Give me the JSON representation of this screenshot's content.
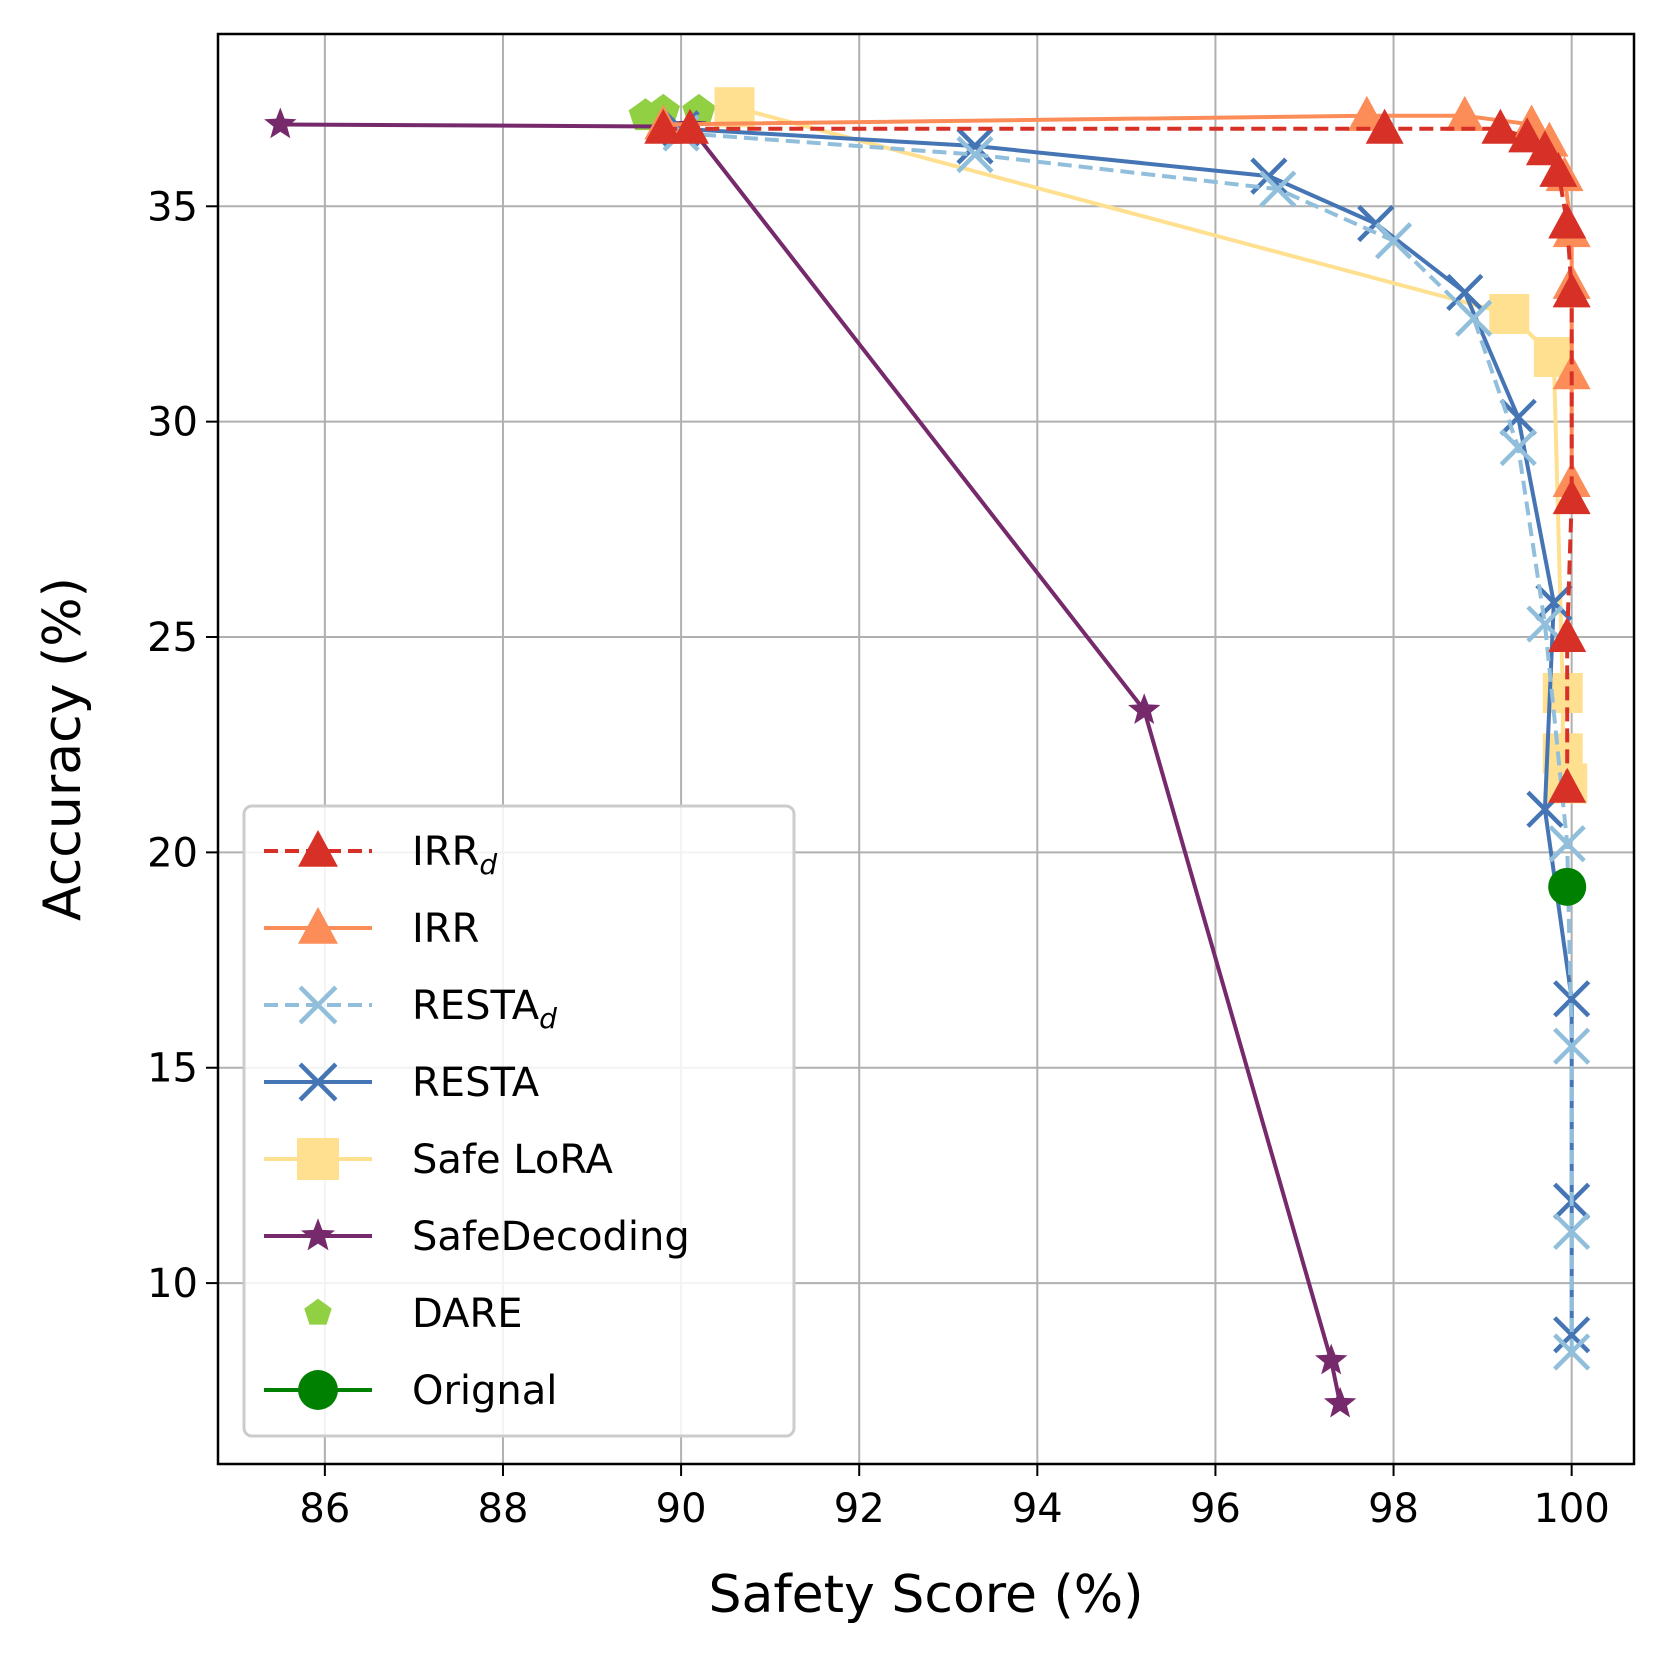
{
  "chart_data": {
    "type": "line",
    "title": "",
    "xlabel": "Safety Score (%)",
    "ylabel": "Accuracy (%)",
    "xlim": [
      84.8,
      100.7
    ],
    "ylim": [
      5.8,
      39.0
    ],
    "xticks": [
      86,
      88,
      90,
      92,
      94,
      96,
      98,
      100
    ],
    "xtick_labels": [
      "86",
      "88",
      "90",
      "92",
      "94",
      "96",
      "98",
      "100"
    ],
    "yticks": [
      10,
      15,
      20,
      25,
      30,
      35
    ],
    "ytick_labels": [
      "10",
      "15",
      "20",
      "25",
      "30",
      "35"
    ],
    "grid": true,
    "legend_position": "lower-left",
    "series": [
      {
        "name": "IRR",
        "name_sub": "d",
        "color": "#d73027",
        "line": "dashed",
        "marker": "triangle",
        "points": [
          [
            89.8,
            36.8
          ],
          [
            90.1,
            36.8
          ],
          [
            97.9,
            36.8
          ],
          [
            99.2,
            36.8
          ],
          [
            99.5,
            36.6
          ],
          [
            99.7,
            36.3
          ],
          [
            99.85,
            35.8
          ],
          [
            99.95,
            34.6
          ],
          [
            100.0,
            33.0
          ],
          [
            100.0,
            28.2
          ],
          [
            99.95,
            25.0
          ],
          [
            99.95,
            21.5
          ]
        ]
      },
      {
        "name": "IRR",
        "name_sub": "",
        "color": "#fc8d59",
        "line": "solid",
        "marker": "triangle",
        "points": [
          [
            89.8,
            36.9
          ],
          [
            97.7,
            37.1
          ],
          [
            98.8,
            37.1
          ],
          [
            99.55,
            36.9
          ],
          [
            99.75,
            36.5
          ],
          [
            99.92,
            35.7
          ],
          [
            100.0,
            34.4
          ],
          [
            100.0,
            33.2
          ],
          [
            100.0,
            31.1
          ],
          [
            100.0,
            28.6
          ]
        ]
      },
      {
        "name": "RESTA",
        "name_sub": "d",
        "color": "#91bfdb",
        "line": "dashed",
        "marker": "x",
        "points": [
          [
            90.0,
            36.7
          ],
          [
            93.3,
            36.2
          ],
          [
            96.7,
            35.4
          ],
          [
            98.0,
            34.2
          ],
          [
            98.9,
            32.4
          ],
          [
            99.4,
            29.4
          ],
          [
            99.7,
            25.3
          ],
          [
            99.95,
            20.2
          ],
          [
            100.0,
            15.5
          ],
          [
            100.0,
            11.2
          ],
          [
            100.0,
            8.4
          ]
        ]
      },
      {
        "name": "RESTA",
        "name_sub": "",
        "color": "#4575b4",
        "line": "solid",
        "marker": "x",
        "points": [
          [
            90.0,
            36.8
          ],
          [
            93.3,
            36.4
          ],
          [
            96.6,
            35.7
          ],
          [
            97.8,
            34.6
          ],
          [
            98.8,
            33.0
          ],
          [
            99.4,
            30.1
          ],
          [
            99.8,
            25.8
          ],
          [
            99.7,
            21.0
          ],
          [
            100.0,
            16.6
          ],
          [
            100.0,
            11.9
          ],
          [
            100.0,
            8.8
          ]
        ]
      },
      {
        "name": "Safe LoRA",
        "name_sub": "",
        "color": "#fee090",
        "line": "solid",
        "marker": "square",
        "points": [
          [
            90.6,
            37.3
          ],
          [
            99.3,
            32.5
          ],
          [
            99.8,
            31.5
          ],
          [
            99.9,
            23.7
          ],
          [
            99.9,
            22.3
          ],
          [
            99.95,
            21.6
          ]
        ]
      },
      {
        "name": "SafeDecoding",
        "name_sub": "",
        "color": "#762a6b",
        "line": "solid",
        "marker": "star",
        "points": [
          [
            85.5,
            36.9
          ],
          [
            90.1,
            36.85
          ],
          [
            95.2,
            23.3
          ],
          [
            97.3,
            8.2
          ],
          [
            97.4,
            7.2
          ]
        ]
      },
      {
        "name": "DARE",
        "name_sub": "",
        "color": "#91d042",
        "line": "none",
        "marker": "pentagon",
        "points": [
          [
            89.6,
            37.1
          ],
          [
            89.8,
            37.2
          ],
          [
            90.2,
            37.2
          ]
        ]
      },
      {
        "name": "Orignal",
        "name_sub": "",
        "color": "#008000",
        "line": "solid",
        "marker": "circle",
        "points": [
          [
            99.95,
            19.2
          ]
        ]
      }
    ]
  }
}
